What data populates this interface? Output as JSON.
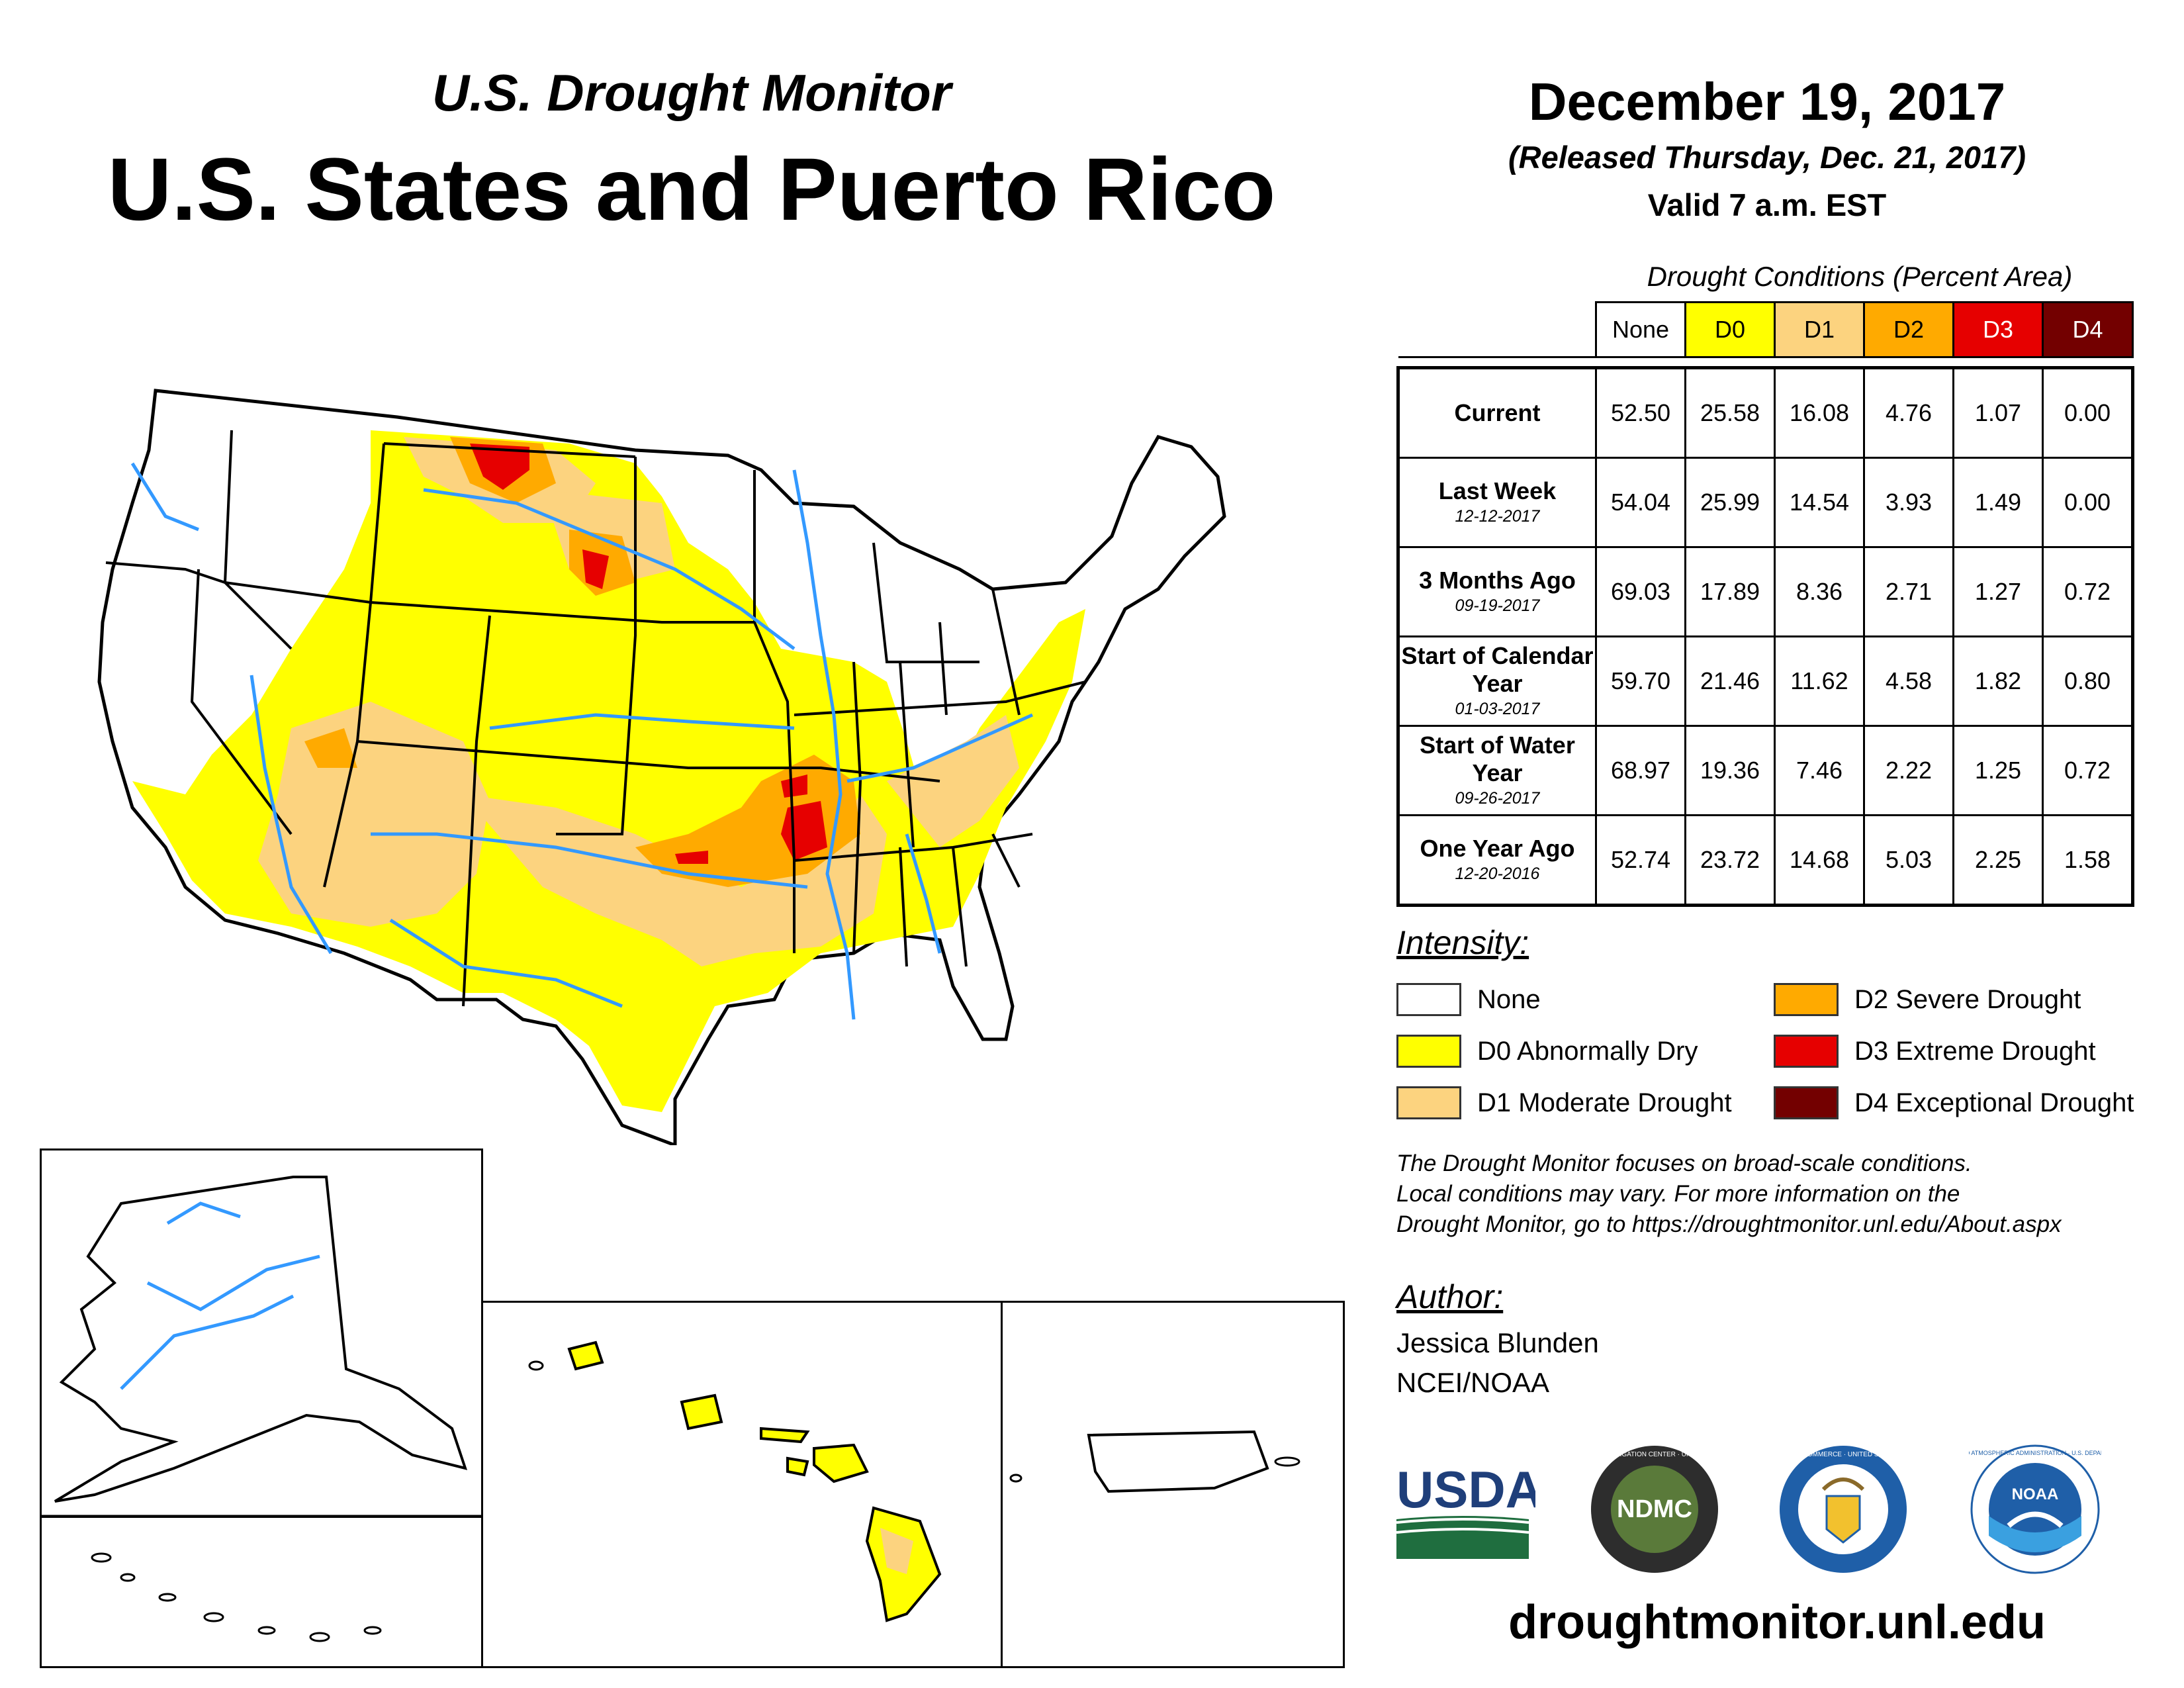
{
  "header": {
    "subtitle": "U.S. Drought Monitor",
    "title": "U.S. States and Puerto Rico",
    "date": "December 19, 2017",
    "released": "(Released Thursday, Dec. 21, 2017)",
    "valid": "Valid 7 a.m. EST"
  },
  "table": {
    "caption": "Drought Conditions (Percent Area)",
    "columns": [
      "None",
      "D0",
      "D1",
      "D2",
      "D3",
      "D4"
    ],
    "column_colors": [
      "#ffffff",
      "#ffff00",
      "#fcd37f",
      "#ffaa00",
      "#e60000",
      "#730000"
    ],
    "rows": [
      {
        "label": "Current",
        "date": "",
        "values": [
          "52.50",
          "25.58",
          "16.08",
          "4.76",
          "1.07",
          "0.00"
        ]
      },
      {
        "label": "Last Week",
        "date": "12-12-2017",
        "values": [
          "54.04",
          "25.99",
          "14.54",
          "3.93",
          "1.49",
          "0.00"
        ]
      },
      {
        "label": "3 Months Ago",
        "date": "09-19-2017",
        "values": [
          "69.03",
          "17.89",
          "8.36",
          "2.71",
          "1.27",
          "0.72"
        ]
      },
      {
        "label": "Start of Calendar Year",
        "date": "01-03-2017",
        "values": [
          "59.70",
          "21.46",
          "11.62",
          "4.58",
          "1.82",
          "0.80"
        ]
      },
      {
        "label": "Start of Water Year",
        "date": "09-26-2017",
        "values": [
          "68.97",
          "19.36",
          "7.46",
          "2.22",
          "1.25",
          "0.72"
        ]
      },
      {
        "label": "One Year Ago",
        "date": "12-20-2016",
        "values": [
          "52.74",
          "23.72",
          "14.68",
          "5.03",
          "2.25",
          "1.58"
        ]
      }
    ]
  },
  "legend": {
    "title": "Intensity:",
    "items": [
      {
        "label": "None",
        "color": "#ffffff"
      },
      {
        "label": "D0 Abnormally Dry",
        "color": "#ffff00"
      },
      {
        "label": "D1 Moderate Drought",
        "color": "#fcd37f"
      },
      {
        "label": "D2 Severe Drought",
        "color": "#ffaa00"
      },
      {
        "label": "D3 Extreme Drought",
        "color": "#e60000"
      },
      {
        "label": "D4 Exceptional Drought",
        "color": "#730000"
      }
    ]
  },
  "note": {
    "line1": "The Drought Monitor focuses on broad-scale conditions.",
    "line2": "Local conditions may vary. For more information on the",
    "line3": "Drought Monitor, go to https://droughtmonitor.unl.edu/About.aspx"
  },
  "author": {
    "title": "Author:",
    "name": "Jessica Blunden",
    "org": "NCEI/NOAA"
  },
  "logos": {
    "usda": "USDA",
    "ndmc": "NDMC",
    "ndmc_ring": "NATIONAL DROUGHT MITIGATION CENTER · UNIVERSITY OF NEBRASKA",
    "commerce_ring": "DEPARTMENT OF COMMERCE · UNITED STATES OF AMERICA",
    "noaa": "NOAA",
    "noaa_ring": "NATIONAL OCEANIC AND ATMOSPHERIC ADMINISTRATION · U.S. DEPARTMENT OF COMMERCE"
  },
  "site": "droughtmonitor.unl.edu",
  "colors": {
    "none": "#ffffff",
    "d0": "#ffff00",
    "d1": "#fcd37f",
    "d2": "#ffaa00",
    "d3": "#e60000",
    "d4": "#730000",
    "river": "#3399ff"
  }
}
